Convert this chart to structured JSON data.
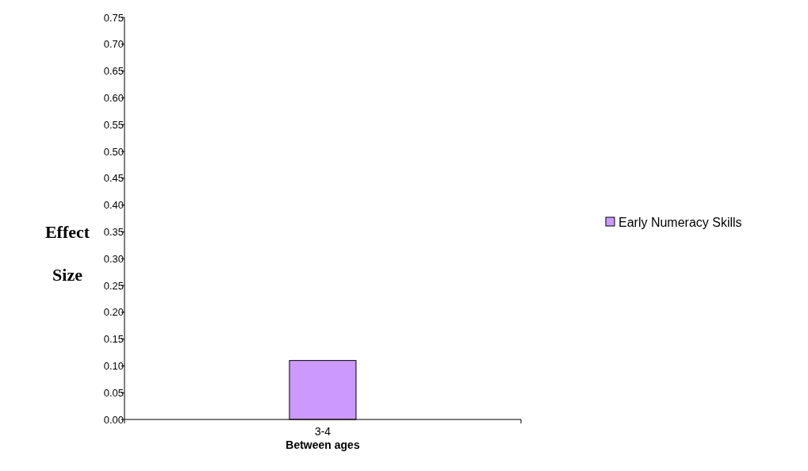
{
  "chart_data": {
    "type": "bar",
    "xlabel": "Between ages",
    "ylabel": "Effect Size",
    "categories": [
      "3-4"
    ],
    "series": [
      {
        "name": "Early Numeracy Skills",
        "color": "#cc99ff",
        "values": [
          0.11
        ]
      }
    ],
    "ylim": [
      0,
      0.75
    ],
    "yticks": [
      {
        "value": 0,
        "label": "0.00"
      },
      {
        "value": 0.05,
        "label": "0.05"
      },
      {
        "value": 0.1,
        "label": "0.10"
      },
      {
        "value": 0.15,
        "label": "0.15"
      },
      {
        "value": 0.2,
        "label": "0.20"
      },
      {
        "value": 0.25,
        "label": "0.25"
      },
      {
        "value": 0.3,
        "label": "0.30"
      },
      {
        "value": 0.35,
        "label": "0.35"
      },
      {
        "value": 0.4,
        "label": "0.40"
      },
      {
        "value": 0.45,
        "label": "0.45"
      },
      {
        "value": 0.5,
        "label": "0.50"
      },
      {
        "value": 0.55,
        "label": "0.55"
      },
      {
        "value": 0.6,
        "label": "0.60"
      },
      {
        "value": 0.65,
        "label": "0.65"
      },
      {
        "value": 0.7,
        "label": "0.70"
      },
      {
        "value": 0.75,
        "label": "0.75"
      }
    ],
    "legend": "right",
    "grid": false
  }
}
